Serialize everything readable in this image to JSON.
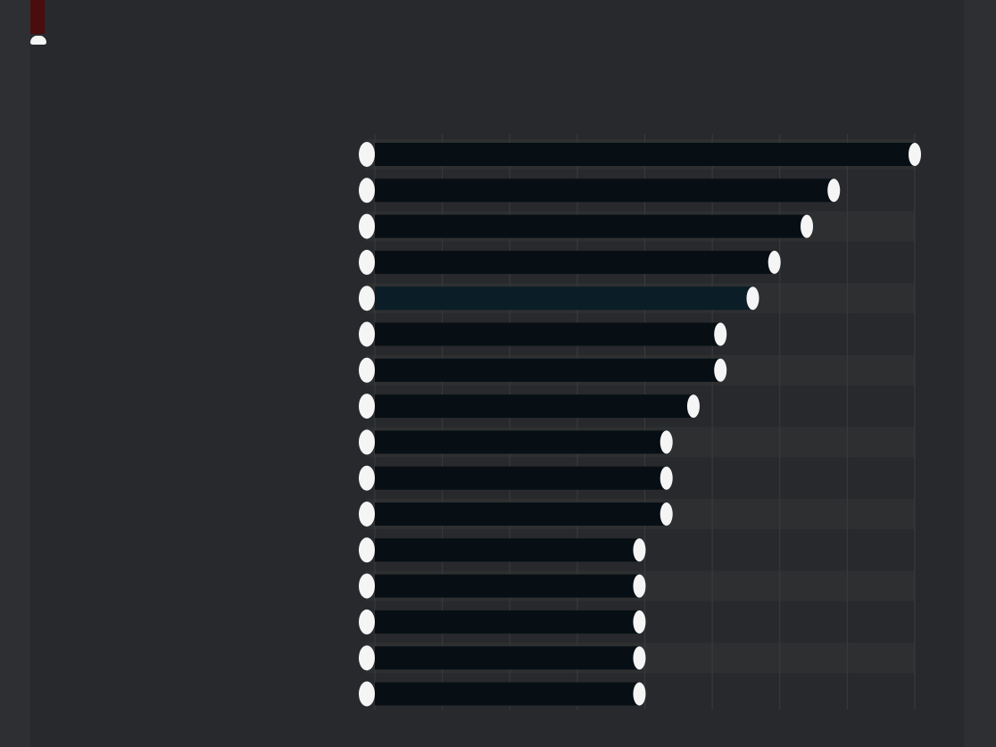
{
  "chart_data": {
    "type": "bar",
    "orientation": "horizontal",
    "title": "",
    "categories": [
      "",
      "",
      "",
      "",
      "",
      "",
      "",
      "",
      "",
      "",
      "",
      "",
      "",
      "",
      "",
      ""
    ],
    "values": [
      100,
      85,
      80,
      74,
      70,
      64,
      64,
      59,
      54,
      54,
      54,
      49,
      49,
      49,
      49,
      49
    ],
    "highlight_index": 4,
    "x_ticks": [
      "",
      "",
      "",
      "",
      "",
      "",
      "",
      "",
      ""
    ],
    "xlim": [
      0,
      100
    ],
    "grid": true,
    "footnote": ""
  },
  "colors": {
    "background": "#28292c",
    "bar": "#070f15",
    "bar_highlight": "#0b1d27",
    "row_band": "#2e2f31",
    "text": "#f5f5f5",
    "accent": "#4a0c0c",
    "grid": "#3a3b3e"
  }
}
